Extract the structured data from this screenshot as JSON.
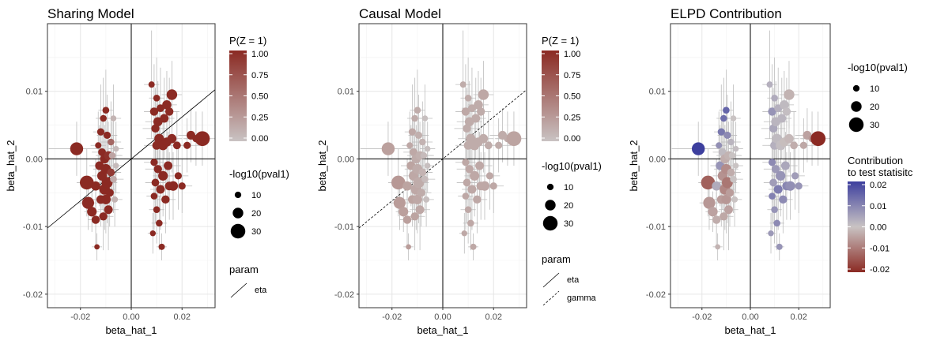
{
  "chart_data": [
    {
      "type": "scatter",
      "title": "Sharing Model",
      "xlabel": "beta_hat_1",
      "ylabel": "beta_hat_2",
      "xlim": [
        -0.033,
        0.033
      ],
      "ylim": [
        -0.022,
        0.02
      ],
      "x_ticks": [
        -0.02,
        0.0,
        0.02
      ],
      "x_tick_labels": [
        "-0.02",
        "0.00",
        "0.02"
      ],
      "y_ticks": [
        -0.02,
        -0.01,
        0.0,
        0.01
      ],
      "y_tick_labels": [
        "-0.02",
        "-0.01",
        "0.00",
        "0.01"
      ],
      "grid": true,
      "color_mode": "pz",
      "lines": [
        {
          "param": "eta",
          "slope": 0.31,
          "dash": false
        }
      ],
      "legend": {
        "color": {
          "title": "P(Z = 1)",
          "labels": [
            "1.00",
            "0.75",
            "0.50",
            "0.25",
            "0.00"
          ],
          "values": [
            1.0,
            0.75,
            0.5,
            0.25,
            0.0
          ],
          "colors": [
            "#8b2a23",
            "#c9c3c3"
          ]
        },
        "size": {
          "title": "-log10(pval1)",
          "labels": [
            "10",
            "20",
            "30"
          ],
          "values": [
            10,
            20,
            30
          ]
        },
        "param": {
          "title": "param",
          "entries": [
            "eta"
          ]
        }
      }
    },
    {
      "type": "scatter",
      "title": "Causal Model",
      "xlabel": "beta_hat_1",
      "ylabel": "beta_hat_2",
      "xlim": [
        -0.033,
        0.033
      ],
      "ylim": [
        -0.022,
        0.02
      ],
      "x_ticks": [
        -0.02,
        0.0,
        0.02
      ],
      "x_tick_labels": [
        "-0.02",
        "0.00",
        "0.02"
      ],
      "y_ticks": [
        -0.02,
        -0.01,
        0.0,
        0.01
      ],
      "y_tick_labels": [
        "-0.02",
        "-0.01",
        "0.00",
        "0.01"
      ],
      "grid": true,
      "color_mode": "causal",
      "lines": [
        {
          "param": "eta",
          "slope": 0.0,
          "dash": false
        },
        {
          "param": "gamma",
          "slope": 0.31,
          "dash": true
        }
      ],
      "legend": {
        "color": {
          "title": "P(Z = 1)",
          "labels": [
            "1.00",
            "0.75",
            "0.50",
            "0.25",
            "0.00"
          ],
          "values": [
            1.0,
            0.75,
            0.5,
            0.25,
            0.0
          ],
          "colors": [
            "#8b2a23",
            "#c9c3c3"
          ]
        },
        "size": {
          "title": "-log10(pval1)",
          "labels": [
            "10",
            "20",
            "30"
          ],
          "values": [
            10,
            20,
            30
          ]
        },
        "param": {
          "title": "param",
          "entries": [
            "eta",
            "gamma"
          ]
        }
      }
    },
    {
      "type": "scatter",
      "title": "ELPD Contribution",
      "xlabel": "beta_hat_1",
      "ylabel": "beta_hat_2",
      "xlim": [
        -0.033,
        0.033
      ],
      "ylim": [
        -0.022,
        0.02
      ],
      "x_ticks": [
        -0.02,
        0.0,
        0.02
      ],
      "x_tick_labels": [
        "-0.02",
        "0.00",
        "0.02"
      ],
      "y_ticks": [
        -0.02,
        -0.01,
        0.0,
        0.01
      ],
      "y_tick_labels": [
        "-0.02",
        "-0.01",
        "0.00",
        "0.01"
      ],
      "grid": true,
      "color_mode": "elpd",
      "lines": [],
      "legend": {
        "size": {
          "title": "-log10(pval1)",
          "labels": [
            "10",
            "20",
            "30"
          ],
          "values": [
            10,
            20,
            30
          ]
        },
        "color": {
          "title": "Contribution\nto test statisitc",
          "labels": [
            "0.02",
            "0.01",
            "0.00",
            "-0.01",
            "-0.02"
          ],
          "values": [
            0.02,
            0.01,
            0.0,
            -0.01,
            -0.02
          ],
          "colors": [
            "#3d3f9e",
            "#c9c3c3",
            "#8b2a23"
          ]
        }
      }
    }
  ],
  "points": [
    {
      "x": -0.0215,
      "y": 0.0015,
      "s": 22,
      "ex": 0.011,
      "ey": 0.004,
      "pz": 1.0,
      "pc": 0.45,
      "e": 0.028
    },
    {
      "x": -0.0175,
      "y": -0.0035,
      "s": 24,
      "ex": 0.004,
      "ey": 0.005,
      "pz": 1.0,
      "pc": 0.55,
      "e": -0.018
    },
    {
      "x": -0.017,
      "y": -0.0065,
      "s": 20,
      "ex": 0.004,
      "ey": 0.004,
      "pz": 1.0,
      "pc": 0.5,
      "e": -0.008
    },
    {
      "x": -0.0155,
      "y": -0.0078,
      "s": 15,
      "ex": 0.003,
      "ey": 0.003,
      "pz": 1.0,
      "pc": 0.45,
      "e": -0.006
    },
    {
      "x": -0.014,
      "y": -0.004,
      "s": 14,
      "ex": 0.003,
      "ey": 0.004,
      "pz": 1.0,
      "pc": 0.4,
      "e": 0.005
    },
    {
      "x": -0.014,
      "y": -0.009,
      "s": 12,
      "ex": 0.003,
      "ey": 0.004,
      "pz": 1.0,
      "pc": 0.45,
      "e": -0.004
    },
    {
      "x": -0.0135,
      "y": -0.013,
      "s": 6,
      "ex": 0.002,
      "ey": 0.002,
      "pz": 1.0,
      "pc": 0.5,
      "e": -0.003
    },
    {
      "x": -0.0125,
      "y": -0.001,
      "s": 13,
      "ex": 0.004,
      "ey": 0.006,
      "pz": 1.0,
      "pc": 0.4,
      "e": 0.01
    },
    {
      "x": -0.012,
      "y": 0.004,
      "s": 10,
      "ex": 0.003,
      "ey": 0.007,
      "pz": 1.0,
      "pc": 0.35,
      "e": 0.016
    },
    {
      "x": -0.012,
      "y": -0.006,
      "s": 13,
      "ex": 0.004,
      "ey": 0.004,
      "pz": 1.0,
      "pc": 0.4,
      "e": -0.007
    },
    {
      "x": -0.0115,
      "y": 0.001,
      "s": 11,
      "ex": 0.004,
      "ey": 0.005,
      "pz": 1.0,
      "pc": 0.35,
      "e": 0.002
    },
    {
      "x": -0.0115,
      "y": -0.0025,
      "s": 15,
      "ex": 0.004,
      "ey": 0.005,
      "pz": 1.0,
      "pc": 0.35,
      "e": -0.009
    },
    {
      "x": -0.011,
      "y": 0.006,
      "s": 9,
      "ex": 0.003,
      "ey": 0.006,
      "pz": 1.0,
      "pc": 0.3,
      "e": 0.018
    },
    {
      "x": -0.011,
      "y": -0.0085,
      "s": 12,
      "ex": 0.004,
      "ey": 0.005,
      "pz": 1.0,
      "pc": 0.4,
      "e": -0.005
    },
    {
      "x": -0.0105,
      "y": 0.0,
      "s": 14,
      "ex": 0.005,
      "ey": 0.005,
      "pz": 1.0,
      "pc": 0.3,
      "e": -0.004
    },
    {
      "x": -0.0105,
      "y": -0.0045,
      "s": 17,
      "ex": 0.004,
      "ey": 0.006,
      "pz": 1.0,
      "pc": 0.35,
      "e": -0.011
    },
    {
      "x": -0.01,
      "y": 0.0072,
      "s": 9,
      "ex": 0.003,
      "ey": 0.006,
      "pz": 1.0,
      "pc": 0.3,
      "e": 0.02
    },
    {
      "x": -0.01,
      "y": -0.0015,
      "s": 16,
      "ex": 0.005,
      "ey": 0.006,
      "pz": 1.0,
      "pc": 0.3,
      "e": -0.01
    },
    {
      "x": -0.01,
      "y": -0.006,
      "s": 15,
      "ex": 0.004,
      "ey": 0.005,
      "pz": 1.0,
      "pc": 0.35,
      "e": -0.008
    },
    {
      "x": -0.0095,
      "y": 0.0035,
      "s": 10,
      "ex": 0.004,
      "ey": 0.006,
      "pz": 1.0,
      "pc": 0.25,
      "e": 0.012
    },
    {
      "x": -0.0095,
      "y": -0.0035,
      "s": 18,
      "ex": 0.004,
      "ey": 0.006,
      "pz": 1.0,
      "pc": 0.3,
      "e": -0.014
    },
    {
      "x": -0.009,
      "y": 0.0005,
      "s": 13,
      "ex": 0.005,
      "ey": 0.005,
      "pz": 0.95,
      "pc": 0.25,
      "e": -0.003
    },
    {
      "x": -0.009,
      "y": -0.0075,
      "s": 13,
      "ex": 0.004,
      "ey": 0.006,
      "pz": 1.0,
      "pc": 0.35,
      "e": -0.006
    },
    {
      "x": -0.0085,
      "y": -0.005,
      "s": 12,
      "ex": 0.004,
      "ey": 0.005,
      "pz": 1.0,
      "pc": 0.3,
      "e": -0.007
    },
    {
      "x": -0.008,
      "y": 0.0025,
      "s": 9,
      "ex": 0.004,
      "ey": 0.006,
      "pz": 0.6,
      "pc": 0.2,
      "e": 0.003
    },
    {
      "x": -0.008,
      "y": -0.002,
      "s": 11,
      "ex": 0.004,
      "ey": 0.005,
      "pz": 0.9,
      "pc": 0.2,
      "e": -0.004
    },
    {
      "x": -0.0075,
      "y": 0.0005,
      "s": 9,
      "ex": 0.004,
      "ey": 0.005,
      "pz": 0.2,
      "pc": 0.1,
      "e": 0.0
    },
    {
      "x": -0.007,
      "y": -0.003,
      "s": 9,
      "ex": 0.004,
      "ey": 0.005,
      "pz": 0.15,
      "pc": 0.1,
      "e": 0.0
    },
    {
      "x": -0.007,
      "y": 0.006,
      "s": 7,
      "ex": 0.003,
      "ey": 0.005,
      "pz": 0.1,
      "pc": 0.05,
      "e": 0.0
    },
    {
      "x": -0.0065,
      "y": -0.006,
      "s": 8,
      "ex": 0.003,
      "ey": 0.004,
      "pz": 0.1,
      "pc": 0.05,
      "e": 0.0
    },
    {
      "x": -0.006,
      "y": 0.0015,
      "s": 7,
      "ex": 0.003,
      "ey": 0.004,
      "pz": 0.05,
      "pc": 0.05,
      "e": 0.001
    },
    {
      "x": -0.006,
      "y": -0.001,
      "s": 7,
      "ex": 0.003,
      "ey": 0.004,
      "pz": 0.05,
      "pc": 0.05,
      "e": 0.0
    },
    {
      "x": 0.008,
      "y": 0.011,
      "s": 8,
      "ex": 0.003,
      "ey": 0.008,
      "pz": 1.0,
      "pc": 0.3,
      "e": 0.004
    },
    {
      "x": 0.009,
      "y": 0.007,
      "s": 12,
      "ex": 0.004,
      "ey": 0.007,
      "pz": 1.0,
      "pc": 0.35,
      "e": 0.01
    },
    {
      "x": 0.009,
      "y": -0.0005,
      "s": 10,
      "ex": 0.004,
      "ey": 0.006,
      "pz": 1.0,
      "pc": 0.35,
      "e": 0.012
    },
    {
      "x": 0.009,
      "y": -0.0055,
      "s": 9,
      "ex": 0.003,
      "ey": 0.005,
      "pz": 1.0,
      "pc": 0.35,
      "e": 0.014
    },
    {
      "x": 0.0095,
      "y": 0.0045,
      "s": 12,
      "ex": 0.005,
      "ey": 0.006,
      "pz": 1.0,
      "pc": 0.3,
      "e": 0.006
    },
    {
      "x": 0.0095,
      "y": -0.0035,
      "s": 11,
      "ex": 0.004,
      "ey": 0.006,
      "pz": 1.0,
      "pc": 0.35,
      "e": 0.008
    },
    {
      "x": 0.01,
      "y": 0.009,
      "s": 9,
      "ex": 0.003,
      "ey": 0.006,
      "pz": 1.0,
      "pc": 0.3,
      "e": 0.005
    },
    {
      "x": 0.01,
      "y": 0.002,
      "s": 13,
      "ex": 0.005,
      "ey": 0.006,
      "pz": 1.0,
      "pc": 0.3,
      "e": 0.004
    },
    {
      "x": 0.01,
      "y": -0.0075,
      "s": 9,
      "ex": 0.003,
      "ey": 0.005,
      "pz": 1.0,
      "pc": 0.35,
      "e": 0.01
    },
    {
      "x": 0.0105,
      "y": 0.0055,
      "s": 14,
      "ex": 0.005,
      "ey": 0.006,
      "pz": 1.0,
      "pc": 0.3,
      "e": 0.003
    },
    {
      "x": 0.0105,
      "y": -0.0015,
      "s": 12,
      "ex": 0.005,
      "ey": 0.006,
      "pz": 1.0,
      "pc": 0.35,
      "e": 0.009
    },
    {
      "x": 0.011,
      "y": -0.0095,
      "s": 9,
      "ex": 0.003,
      "ey": 0.004,
      "pz": 1.0,
      "pc": 0.35,
      "e": 0.012
    },
    {
      "x": 0.011,
      "y": 0.003,
      "s": 15,
      "ex": 0.005,
      "ey": 0.006,
      "pz": 1.0,
      "pc": 0.3,
      "e": 0.002
    },
    {
      "x": 0.0115,
      "y": 0.0075,
      "s": 11,
      "ex": 0.004,
      "ey": 0.006,
      "pz": 1.0,
      "pc": 0.3,
      "e": 0.004
    },
    {
      "x": 0.0115,
      "y": -0.0045,
      "s": 13,
      "ex": 0.004,
      "ey": 0.006,
      "pz": 1.0,
      "pc": 0.35,
      "e": 0.015
    },
    {
      "x": 0.012,
      "y": -0.013,
      "s": 8,
      "ex": 0.002,
      "ey": 0.002,
      "pz": 1.0,
      "pc": 0.35,
      "e": 0.01
    },
    {
      "x": 0.0125,
      "y": 0.002,
      "s": 15,
      "ex": 0.005,
      "ey": 0.006,
      "pz": 1.0,
      "pc": 0.3,
      "e": 0.001
    },
    {
      "x": 0.0125,
      "y": -0.0025,
      "s": 15,
      "ex": 0.004,
      "ey": 0.006,
      "pz": 1.0,
      "pc": 0.35,
      "e": 0.01
    },
    {
      "x": 0.013,
      "y": 0.006,
      "s": 13,
      "ex": 0.004,
      "ey": 0.006,
      "pz": 1.0,
      "pc": 0.3,
      "e": 0.003
    },
    {
      "x": 0.0135,
      "y": -0.006,
      "s": 12,
      "ex": 0.004,
      "ey": 0.005,
      "pz": 1.0,
      "pc": 0.35,
      "e": 0.012
    },
    {
      "x": 0.014,
      "y": 0.008,
      "s": 14,
      "ex": 0.004,
      "ey": 0.005,
      "pz": 1.0,
      "pc": 0.3,
      "e": 0.002
    },
    {
      "x": 0.014,
      "y": 0.0025,
      "s": 14,
      "ex": 0.005,
      "ey": 0.006,
      "pz": 1.0,
      "pc": 0.3,
      "e": -0.001
    },
    {
      "x": 0.0145,
      "y": -0.001,
      "s": 13,
      "ex": 0.005,
      "ey": 0.005,
      "pz": 1.0,
      "pc": 0.35,
      "e": 0.006
    },
    {
      "x": 0.015,
      "y": 0.007,
      "s": 12,
      "ex": 0.004,
      "ey": 0.005,
      "pz": 1.0,
      "pc": 0.3,
      "e": 0.001
    },
    {
      "x": 0.015,
      "y": -0.004,
      "s": 13,
      "ex": 0.004,
      "ey": 0.005,
      "pz": 1.0,
      "pc": 0.35,
      "e": 0.013
    },
    {
      "x": 0.016,
      "y": 0.0095,
      "s": 17,
      "ex": 0.004,
      "ey": 0.005,
      "pz": 1.0,
      "pc": 0.35,
      "e": -0.003
    },
    {
      "x": 0.016,
      "y": 0.003,
      "s": 14,
      "ex": 0.004,
      "ey": 0.005,
      "pz": 1.0,
      "pc": 0.3,
      "e": -0.002
    },
    {
      "x": 0.0165,
      "y": -0.004,
      "s": 15,
      "ex": 0.004,
      "ey": 0.005,
      "pz": 1.0,
      "pc": 0.35,
      "e": 0.011
    },
    {
      "x": 0.018,
      "y": 0.002,
      "s": 11,
      "ex": 0.004,
      "ey": 0.005,
      "pz": 1.0,
      "pc": 0.3,
      "e": -0.004
    },
    {
      "x": 0.0185,
      "y": -0.0025,
      "s": 10,
      "ex": 0.004,
      "ey": 0.005,
      "pz": 1.0,
      "pc": 0.35,
      "e": 0.008
    },
    {
      "x": 0.02,
      "y": -0.004,
      "s": 10,
      "ex": 0.004,
      "ey": 0.004,
      "pz": 1.0,
      "pc": 0.35,
      "e": 0.01
    },
    {
      "x": 0.022,
      "y": 0.002,
      "s": 10,
      "ex": 0.005,
      "ey": 0.004,
      "pz": 1.0,
      "pc": 0.3,
      "e": -0.005
    },
    {
      "x": 0.0235,
      "y": 0.0035,
      "s": 13,
      "ex": 0.005,
      "ey": 0.004,
      "pz": 1.0,
      "pc": 0.3,
      "e": -0.006
    },
    {
      "x": 0.0255,
      "y": 0.003,
      "s": 10,
      "ex": 0.005,
      "ey": 0.004,
      "pz": 1.0,
      "pc": 0.3,
      "e": -0.008
    },
    {
      "x": 0.028,
      "y": 0.003,
      "s": 26,
      "ex": 0.007,
      "ey": 0.004,
      "pz": 1.0,
      "pc": 0.4,
      "e": -0.028
    },
    {
      "x": 0.0085,
      "y": -0.011,
      "s": 7,
      "ex": 0.002,
      "ey": 0.003,
      "pz": 1.0,
      "pc": 0.35,
      "e": 0.009
    },
    {
      "x": -0.013,
      "y": 0.002,
      "s": 8,
      "ex": 0.003,
      "ey": 0.005,
      "pz": 1.0,
      "pc": 0.35,
      "e": 0.011
    }
  ]
}
